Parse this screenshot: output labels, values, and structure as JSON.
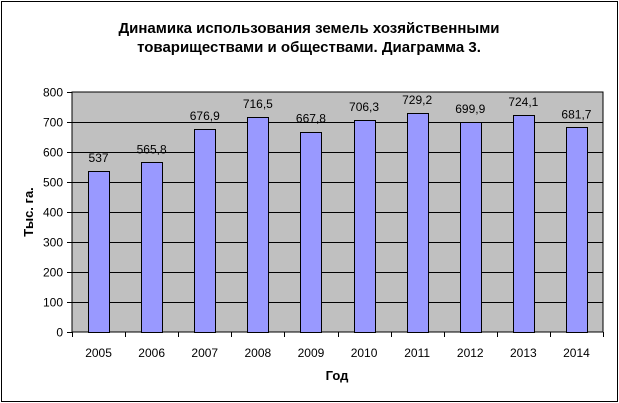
{
  "colors": {
    "plot_background": "#c0c0c0",
    "bar_fill": "#9999ff",
    "bar_stroke": "#000000",
    "grid": "#000000",
    "text": "#000000",
    "frame_border": "#000000",
    "page_background": "#ffffff"
  },
  "chart_data": {
    "type": "bar",
    "title_lines": [
      "Динамика использования земель хозяйственными",
      "товариществами и обществами. Диаграмма 3."
    ],
    "xlabel": "Год",
    "ylabel": "Тыс. га.",
    "categories": [
      "2005",
      "2006",
      "2007",
      "2008",
      "2009",
      "2010",
      "2011",
      "2012",
      "2013",
      "2014"
    ],
    "values": [
      537,
      565.8,
      676.9,
      716.5,
      667.8,
      706.3,
      729.2,
      699.9,
      724.1,
      681.7
    ],
    "value_labels": [
      "537",
      "565,8",
      "676,9",
      "716,5",
      "667,8",
      "706,3",
      "729,2",
      "699,9",
      "724,1",
      "681,7"
    ],
    "ylim": [
      0,
      800
    ],
    "y_ticks": [
      0,
      100,
      200,
      300,
      400,
      500,
      600,
      700,
      800
    ],
    "grid": true,
    "legend": "none"
  }
}
